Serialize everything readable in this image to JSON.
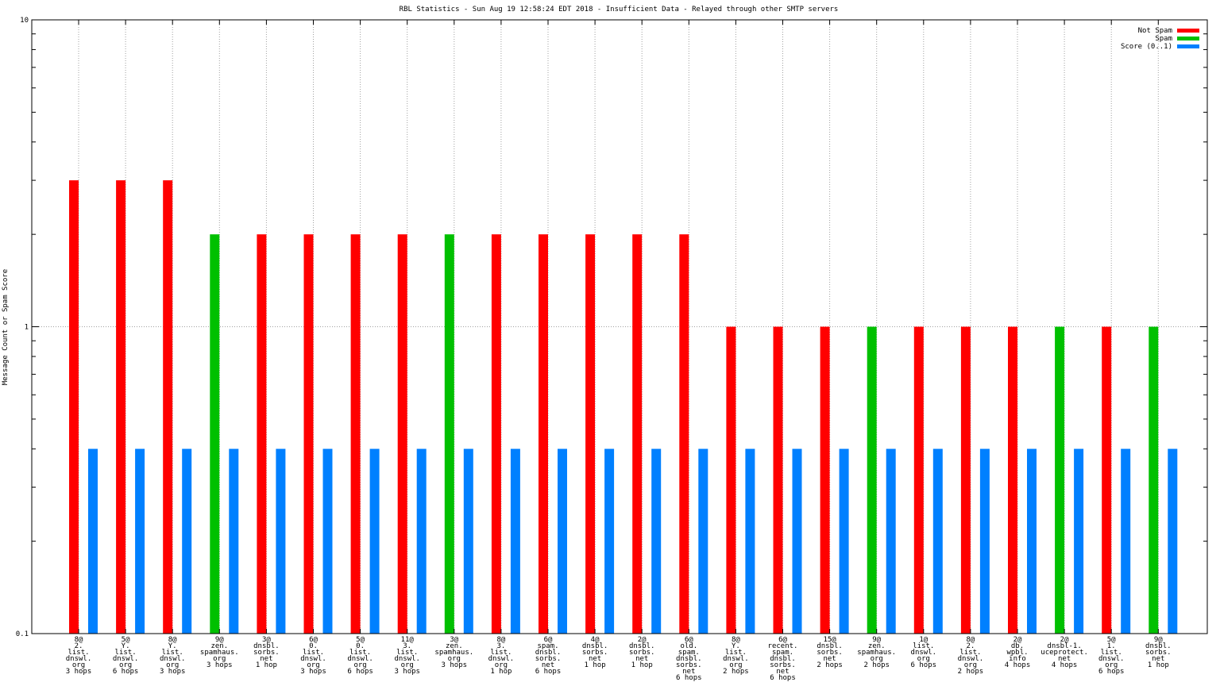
{
  "chart_data": {
    "type": "bar",
    "title": "RBL Statistics - Sun Aug 19 12:58:24 EDT 2018 - Insufficient Data - Relayed through other SMTP servers",
    "ylabel": "Message Count or Spam Score",
    "xlabel": "",
    "yscale": "log",
    "ylim": [
      0.1,
      10
    ],
    "yticks": [
      "0.1",
      "1",
      "10"
    ],
    "grid": true,
    "legend_position": "top-right",
    "legend": [
      {
        "name": "Not Spam",
        "color": "#ff0000"
      },
      {
        "name": "Spam",
        "color": "#00c000"
      },
      {
        "name": "Score (0..1)",
        "color": "#0080ff"
      }
    ],
    "categories": [
      [
        "8@",
        "2.",
        "list.",
        "dnswl.",
        "org",
        "3 hops"
      ],
      [
        "5@",
        "Y.",
        "list.",
        "dnswl.",
        "org",
        "6 hops"
      ],
      [
        "8@",
        "Y.",
        "list.",
        "dnswl.",
        "org",
        "3 hops"
      ],
      [
        "9@",
        "zen.",
        "spamhaus.",
        "org",
        "3 hops"
      ],
      [
        "3@",
        "dnsbl.",
        "sorbs.",
        "net",
        "1 hop"
      ],
      [
        "6@",
        "0.",
        "list.",
        "dnswl.",
        "org",
        "3 hops"
      ],
      [
        "5@",
        "0.",
        "list.",
        "dnswl.",
        "org",
        "6 hops"
      ],
      [
        "11@",
        "3.",
        "list.",
        "dnswl.",
        "org",
        "3 hops"
      ],
      [
        "3@",
        "zen.",
        "spamhaus.",
        "org",
        "3 hops"
      ],
      [
        "8@",
        "3.",
        "list.",
        "dnswl.",
        "org",
        "1 hop"
      ],
      [
        "6@",
        "spam.",
        "dnsbl.",
        "sorbs.",
        "net",
        "6 hops"
      ],
      [
        "4@",
        "dnsbl.",
        "sorbs.",
        "net",
        "1 hop"
      ],
      [
        "2@",
        "dnsbl.",
        "sorbs.",
        "net",
        "1 hop"
      ],
      [
        "6@",
        "old.",
        "spam.",
        "dnsbl.",
        "sorbs.",
        "net",
        "6 hops"
      ],
      [
        "8@",
        "Y.",
        "list.",
        "dnswl.",
        "org",
        "2 hops"
      ],
      [
        "6@",
        "recent.",
        "spam.",
        "dnsbl.",
        "sorbs.",
        "net",
        "6 hops"
      ],
      [
        "15@",
        "dnsbl.",
        "sorbs.",
        "net",
        "2 hops"
      ],
      [
        "9@",
        "zen.",
        "spamhaus.",
        "org",
        "2 hops"
      ],
      [
        "1@",
        "list.",
        "dnswl.",
        "org",
        "6 hops"
      ],
      [
        "8@",
        "2.",
        "list.",
        "dnswl.",
        "org",
        "2 hops"
      ],
      [
        "2@",
        "db.",
        "wpbl.",
        "info",
        "4 hops"
      ],
      [
        "2@",
        "dnsbl-1.",
        "uceprotect.",
        "net",
        "4 hops"
      ],
      [
        "5@",
        "1.",
        "list.",
        "dnswl.",
        "org",
        "6 hops"
      ],
      [
        "9@",
        "dnsbl.",
        "sorbs.",
        "net",
        "1 hop"
      ]
    ],
    "series": [
      {
        "name": "Not Spam",
        "values": [
          3,
          3,
          3,
          0,
          2,
          2,
          2,
          2,
          0,
          2,
          2,
          2,
          2,
          2,
          1,
          1,
          1,
          0,
          1,
          1,
          1,
          0,
          1,
          0
        ]
      },
      {
        "name": "Spam",
        "values": [
          0,
          0,
          0,
          2,
          0,
          0,
          0,
          0,
          2,
          0,
          0,
          0,
          0,
          0,
          0,
          0,
          0,
          1,
          0,
          0,
          0,
          1,
          0,
          1
        ]
      },
      {
        "name": "Score (0..1)",
        "values": [
          0.4,
          0.4,
          0.4,
          0.4,
          0.4,
          0.4,
          0.4,
          0.4,
          0.4,
          0.4,
          0.4,
          0.4,
          0.4,
          0.4,
          0.4,
          0.4,
          0.4,
          0.4,
          0.4,
          0.4,
          0.4,
          0.4,
          0.4,
          0.4
        ]
      }
    ]
  }
}
